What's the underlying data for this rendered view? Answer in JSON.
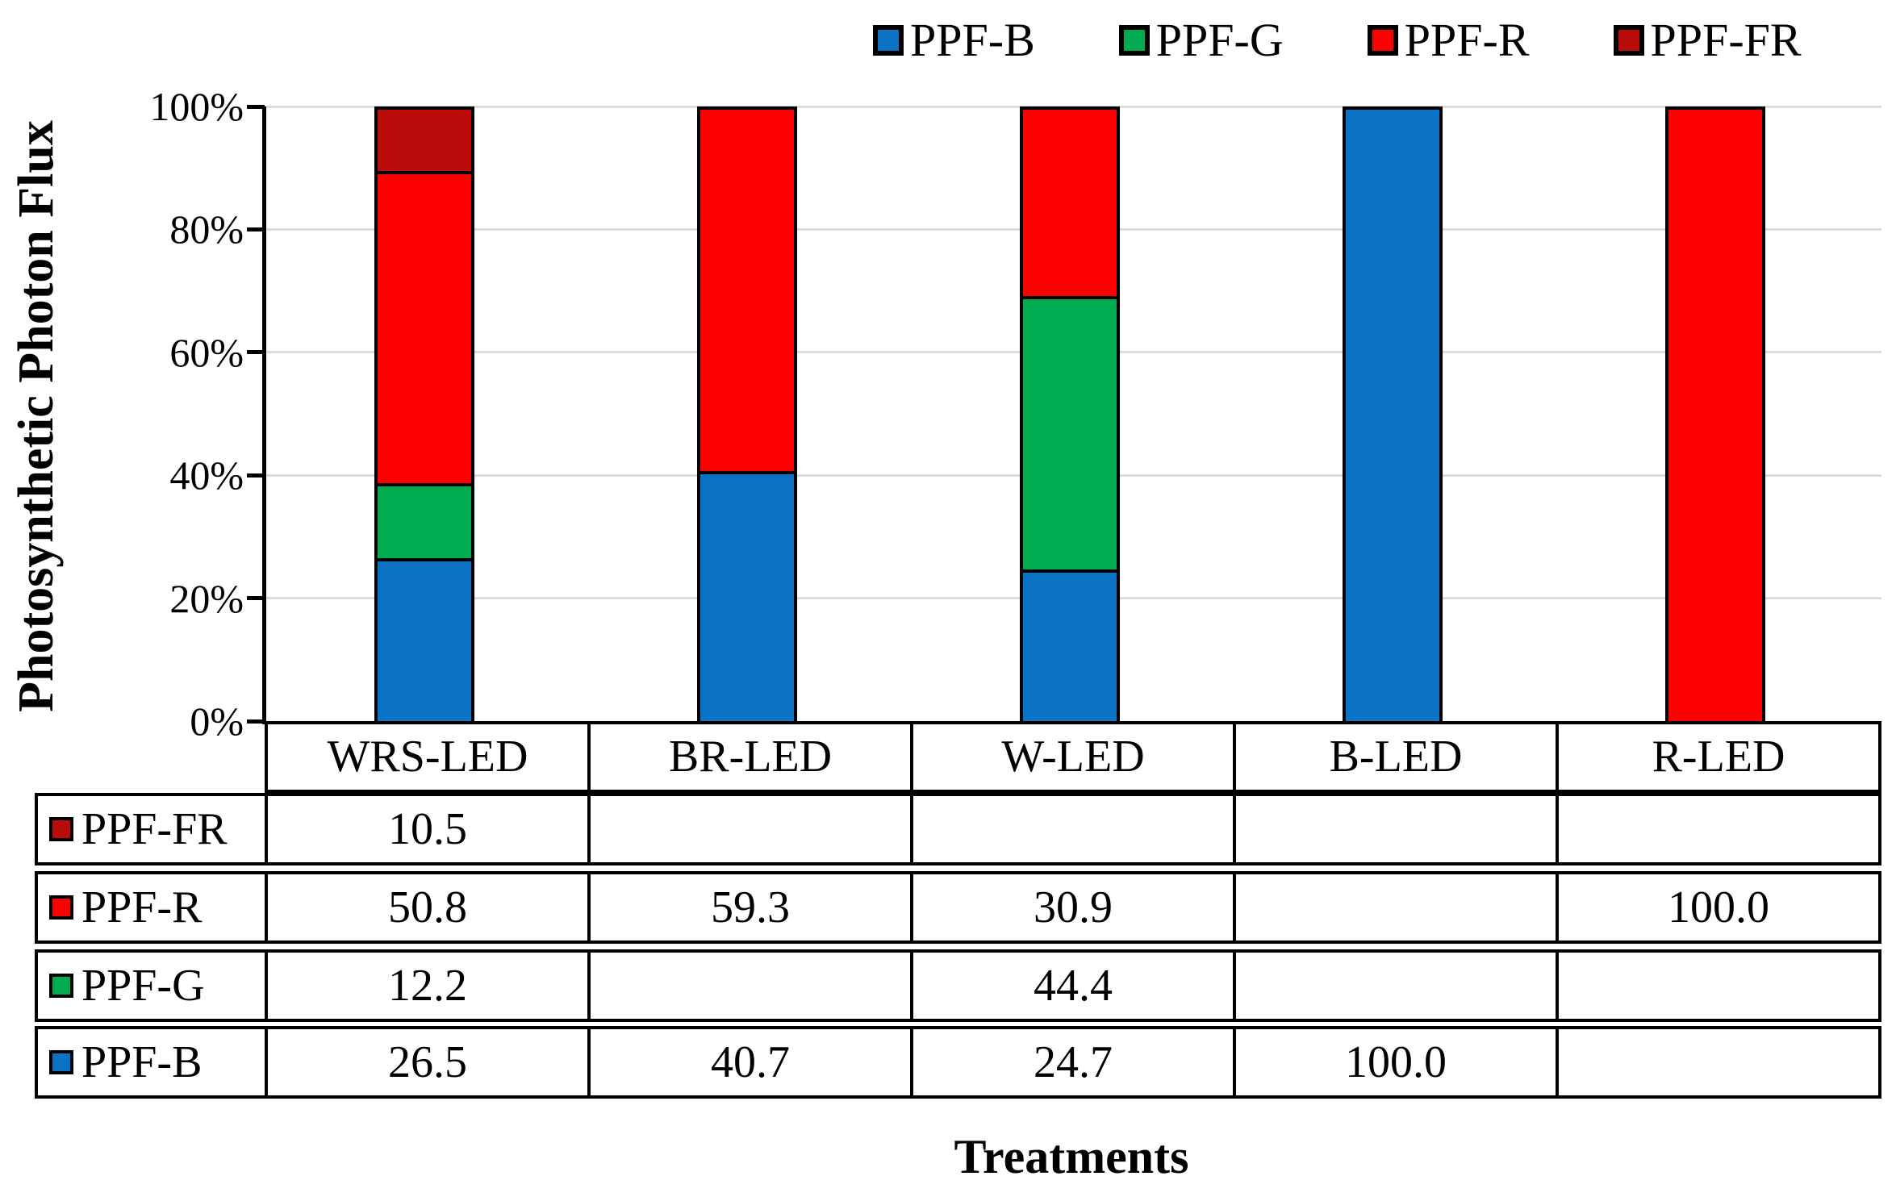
{
  "legend": {
    "items": [
      {
        "label": "PPF-B",
        "color": "#0B72C4"
      },
      {
        "label": "PPF-G",
        "color": "#00AC4F"
      },
      {
        "label": "PPF-R",
        "color": "#FE0000"
      },
      {
        "label": "PPF-FR",
        "color": "#B90C0B"
      }
    ]
  },
  "y_axis": {
    "title": "Photosynthetic Photon Flux",
    "tick_labels": [
      "100%",
      "80%",
      "60%",
      "40%",
      "20%",
      "0%"
    ]
  },
  "x_axis": {
    "title": "Treatments"
  },
  "chart_data": {
    "type": "bar",
    "stacked": true,
    "units": "percent of total",
    "title": "",
    "xlabel": "Treatments",
    "ylabel": "Photosynthetic Photon Flux",
    "ylim": [
      0,
      100
    ],
    "grid": true,
    "legend_position": "top",
    "categories": [
      "WRS-LED",
      "BR-LED",
      "W-LED",
      "B-LED",
      "R-LED"
    ],
    "series": [
      {
        "name": "PPF-B",
        "color": "#0B72C4",
        "values": [
          26.5,
          40.7,
          24.7,
          100.0,
          null
        ]
      },
      {
        "name": "PPF-G",
        "color": "#00AC4F",
        "values": [
          12.2,
          null,
          44.4,
          null,
          null
        ]
      },
      {
        "name": "PPF-R",
        "color": "#FE0000",
        "values": [
          50.8,
          59.3,
          30.9,
          null,
          100.0
        ]
      },
      {
        "name": "PPF-FR",
        "color": "#B90C0B",
        "values": [
          10.5,
          null,
          null,
          null,
          null
        ]
      }
    ]
  },
  "table": {
    "rows": [
      {
        "label": "PPF-FR",
        "values": [
          "10.5",
          "",
          "",
          "",
          ""
        ]
      },
      {
        "label": "PPF-R",
        "values": [
          "50.8",
          "59.3",
          "30.9",
          "",
          "100.0"
        ]
      },
      {
        "label": "PPF-G",
        "values": [
          "12.2",
          "",
          "44.4",
          "",
          ""
        ]
      },
      {
        "label": "PPF-B",
        "values": [
          "26.5",
          "40.7",
          "24.7",
          "100.0",
          ""
        ]
      }
    ]
  }
}
